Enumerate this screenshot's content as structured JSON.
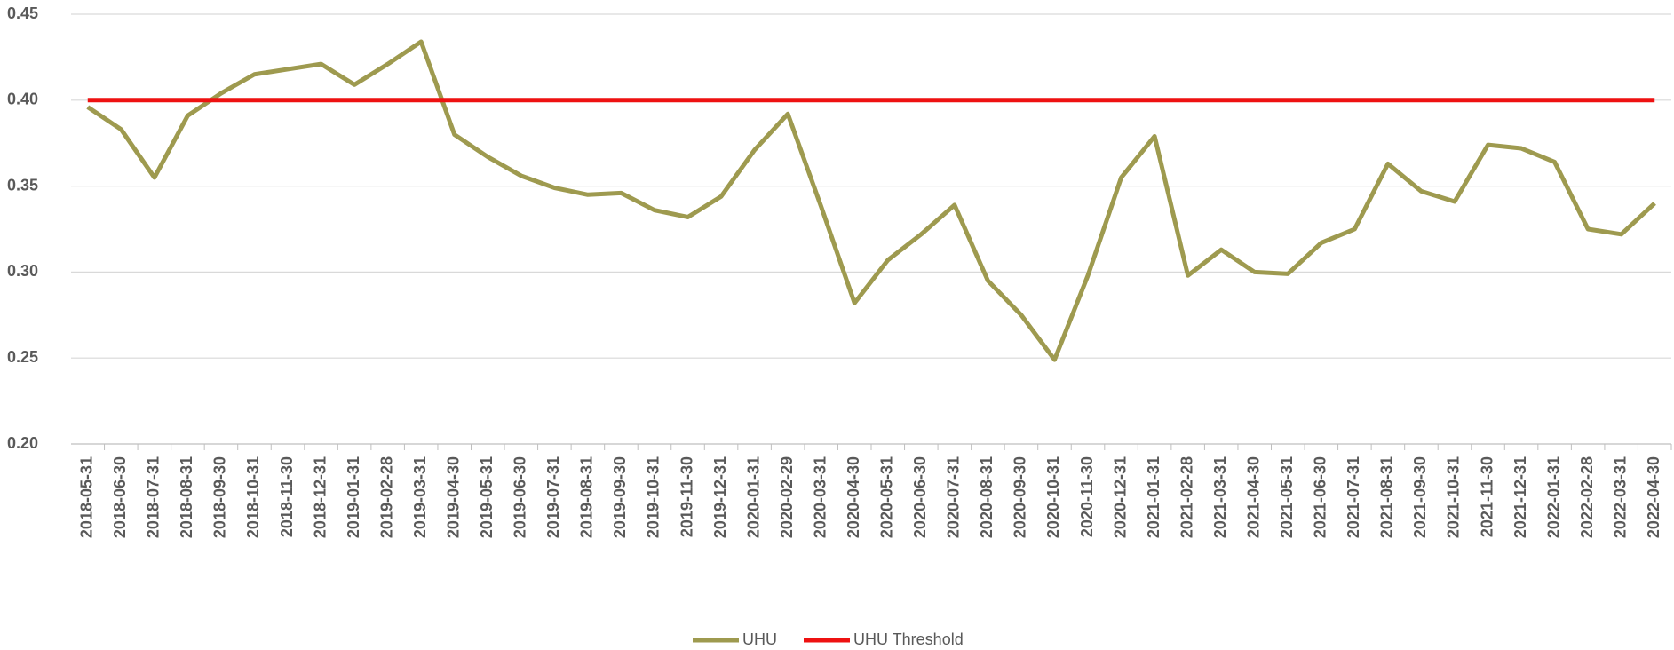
{
  "chart_data": {
    "type": "line",
    "categories": [
      "2018-05-31",
      "2018-06-30",
      "2018-07-31",
      "2018-08-31",
      "2018-09-30",
      "2018-10-31",
      "2018-11-30",
      "2018-12-31",
      "2019-01-31",
      "2019-02-28",
      "2019-03-31",
      "2019-04-30",
      "2019-05-31",
      "2019-06-30",
      "2019-07-31",
      "2019-08-31",
      "2019-09-30",
      "2019-10-31",
      "2019-11-30",
      "2019-12-31",
      "2020-01-31",
      "2020-02-29",
      "2020-03-31",
      "2020-04-30",
      "2020-05-31",
      "2020-06-30",
      "2020-07-31",
      "2020-08-31",
      "2020-09-30",
      "2020-10-31",
      "2020-11-30",
      "2020-12-31",
      "2021-01-31",
      "2021-02-28",
      "2021-03-31",
      "2021-04-30",
      "2021-05-31",
      "2021-06-30",
      "2021-07-31",
      "2021-08-31",
      "2021-09-30",
      "2021-10-31",
      "2021-11-30",
      "2021-12-31",
      "2022-01-31",
      "2022-02-28",
      "2022-03-31",
      "2022-04-30"
    ],
    "series": [
      {
        "name": "UHU",
        "color": "#9e9a4f",
        "values": [
          0.396,
          0.383,
          0.355,
          0.391,
          0.404,
          0.415,
          0.418,
          0.421,
          0.409,
          0.421,
          0.434,
          0.38,
          0.367,
          0.356,
          0.349,
          0.345,
          0.346,
          0.336,
          0.332,
          0.344,
          0.371,
          0.392,
          0.338,
          0.282,
          0.307,
          0.322,
          0.339,
          0.295,
          0.275,
          0.249,
          0.298,
          0.355,
          0.379,
          0.298,
          0.313,
          0.3,
          0.299,
          0.317,
          0.325,
          0.363,
          0.347,
          0.341,
          0.374,
          0.372,
          0.364,
          0.325,
          0.322,
          0.34
        ]
      },
      {
        "name": "UHU Threshold",
        "color": "#ee1111",
        "values": [
          0.4,
          0.4,
          0.4,
          0.4,
          0.4,
          0.4,
          0.4,
          0.4,
          0.4,
          0.4,
          0.4,
          0.4,
          0.4,
          0.4,
          0.4,
          0.4,
          0.4,
          0.4,
          0.4,
          0.4,
          0.4,
          0.4,
          0.4,
          0.4,
          0.4,
          0.4,
          0.4,
          0.4,
          0.4,
          0.4,
          0.4,
          0.4,
          0.4,
          0.4,
          0.4,
          0.4,
          0.4,
          0.4,
          0.4,
          0.4,
          0.4,
          0.4,
          0.4,
          0.4,
          0.4,
          0.4,
          0.4,
          0.4
        ]
      }
    ],
    "ylim": [
      0.2,
      0.45
    ],
    "yticks": [
      {
        "value": 0.2,
        "label": "0.20"
      },
      {
        "value": 0.25,
        "label": "0.25"
      },
      {
        "value": 0.3,
        "label": "0.30"
      },
      {
        "value": 0.35,
        "label": "0.35"
      },
      {
        "value": 0.4,
        "label": "0.40"
      },
      {
        "value": 0.45,
        "label": "0.45"
      }
    ],
    "grid": true,
    "legend": "bottom"
  }
}
